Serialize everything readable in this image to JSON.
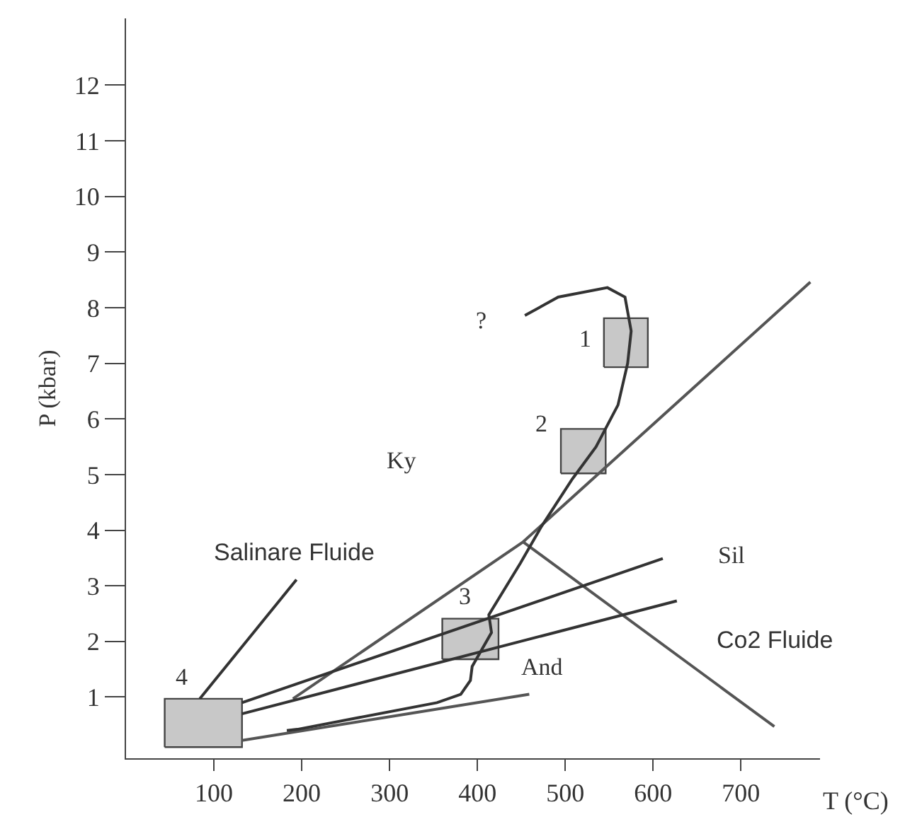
{
  "chart_data": {
    "type": "line",
    "xlabel": "T (°C)",
    "ylabel": "P (kbar)",
    "xlim": [
      0,
      790
    ],
    "ylim": [
      -0.1,
      13.2
    ],
    "xticks": [
      100,
      200,
      300,
      400,
      500,
      600,
      700
    ],
    "yticks": [
      1,
      2,
      3,
      4,
      5,
      6,
      7,
      8,
      9,
      10,
      11,
      12
    ],
    "marker": "none",
    "line_style": "solid",
    "series": [
      {
        "type": "area",
        "color": "#c8c8c8",
        "x": [
          544,
          594,
          594,
          544,
          544
        ],
        "values": [
          6.93,
          6.93,
          7.81,
          7.81,
          6.93
        ]
      },
      {
        "type": "area",
        "color": "#c8c8c8",
        "x": [
          495,
          546,
          546,
          495,
          495
        ],
        "values": [
          5.02,
          5.02,
          5.82,
          5.82,
          5.02
        ]
      },
      {
        "type": "area",
        "color": "#c8c8c8",
        "x": [
          360,
          424,
          424,
          360,
          360
        ],
        "values": [
          1.68,
          1.68,
          2.41,
          2.41,
          1.68
        ]
      },
      {
        "type": "area",
        "color": "#c8c8c8",
        "x": [
          44,
          132,
          132,
          44,
          44
        ],
        "values": [
          0.1,
          0.1,
          0.97,
          0.97,
          0.1
        ]
      },
      {
        "color": "#555555",
        "x": [
          190,
          452,
          779
        ],
        "values": [
          0.97,
          3.79,
          8.46
        ]
      },
      {
        "color": "#555555",
        "x": [
          452,
          738
        ],
        "values": [
          3.79,
          0.47
        ]
      },
      {
        "color": "#555555",
        "x": [
          132,
          459
        ],
        "values": [
          0.22,
          1.05
        ]
      },
      {
        "color": "#333333",
        "x": [
          132,
          611
        ],
        "values": [
          0.9,
          3.49
        ]
      },
      {
        "color": "#333333",
        "x": [
          132,
          627
        ],
        "values": [
          0.7,
          2.73
        ]
      },
      {
        "color": "#333333",
        "x": [
          84,
          194
        ],
        "values": [
          0.97,
          3.11
        ]
      },
      {
        "color": "#333333",
        "x": [
          454,
          492,
          548,
          568,
          575,
          571,
          560,
          535,
          508,
          473,
          449,
          413,
          416,
          394,
          392,
          381,
          354,
          195,
          183
        ],
        "values": [
          7.86,
          8.19,
          8.36,
          8.19,
          7.58,
          7.0,
          6.25,
          5.5,
          4.92,
          4.07,
          3.41,
          2.48,
          2.16,
          1.55,
          1.3,
          1.05,
          0.9,
          0.42,
          0.4
        ]
      }
    ],
    "annotations": [
      "?",
      "1",
      "2",
      "3",
      "4",
      "Ky",
      "Sil",
      "And",
      "Salinare Fluide",
      "Co2 Fluide"
    ]
  }
}
